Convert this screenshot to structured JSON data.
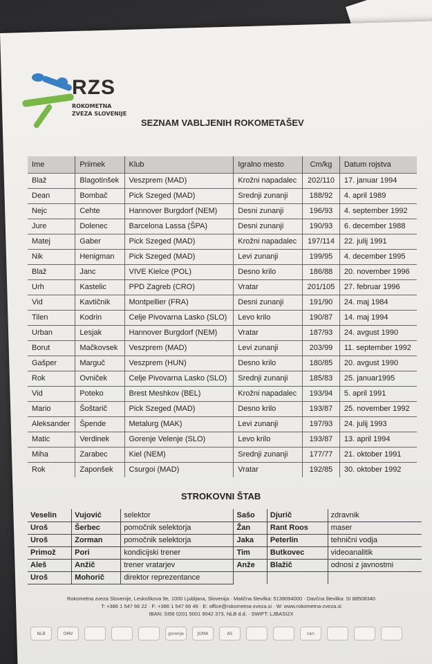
{
  "logo": {
    "text": "RZS",
    "subtitle": "ROKOMETNA\nZVEZA SLOVENIJE",
    "colors": {
      "blue": "#3a7fc4",
      "green": "#7ab648"
    }
  },
  "title": "SEZNAM VABLJENIH ROKOMETAŠEV",
  "players": {
    "columns": [
      "Ime",
      "Priimek",
      "Klub",
      "Igralno mesto",
      "Cm/kg",
      "Datum rojstva"
    ],
    "rows": [
      [
        "Blaž",
        "Blagotinšek",
        "Veszprem (MAD)",
        "Krožni napadalec",
        "202/110",
        "17. januar 1994"
      ],
      [
        "Dean",
        "Bombač",
        "Pick Szeged (MAD)",
        "Srednji zunanji",
        "188/92",
        "4. april 1989"
      ],
      [
        "Nejc",
        "Cehte",
        "Hannover Burgdorf (NEM)",
        "Desni zunanji",
        "196/93",
        "4. september 1992"
      ],
      [
        "Jure",
        "Dolenec",
        "Barcelona Lassa (ŠPA)",
        "Desni zunanji",
        "190/93",
        "6. december 1988"
      ],
      [
        "Matej",
        "Gaber",
        "Pick Szeged (MAD)",
        "Krožni napadalec",
        "197/114",
        "22. julij 1991"
      ],
      [
        "Nik",
        "Henigman",
        "Pick Szeged (MAD)",
        "Levi zunanji",
        "199/95",
        "4. december 1995"
      ],
      [
        "Blaž",
        "Janc",
        "VIVE Kielce (POL)",
        "Desno krilo",
        "186/88",
        "20. november 1996"
      ],
      [
        "Urh",
        "Kastelic",
        "PPD Zagreb (CRO)",
        "Vratar",
        "201/105",
        "27. februar 1996"
      ],
      [
        "Vid",
        "Kavtičnik",
        "Montpellier (FRA)",
        "Desni zunanji",
        "191/90",
        "24. maj 1984"
      ],
      [
        "Tilen",
        "Kodrin",
        "Celje Pivovarna Lasko (SLO)",
        "Levo krilo",
        "190/87",
        "14. maj 1994"
      ],
      [
        "Urban",
        "Lesjak",
        "Hannover Burgdorf (NEM)",
        "Vratar",
        "187/93",
        "24. avgust 1990"
      ],
      [
        "Borut",
        "Mačkovsek",
        "Veszprem (MAD)",
        "Levi zunanji",
        "203/99",
        "11. september 1992"
      ],
      [
        "Gašper",
        "Marguč",
        "Veszprem (HUN)",
        "Desno krilo",
        "180/85",
        "20. avgust 1990"
      ],
      [
        "Rok",
        "Ovniček",
        "Celje Pivovarna Lasko (SLO)",
        "Srednji zunanji",
        "185/83",
        "25. januar1995"
      ],
      [
        "Vid",
        "Poteko",
        "Brest Meshkov (BEL)",
        "Krožni napadalec",
        "193/94",
        "5. april 1991"
      ],
      [
        "Mario",
        "Šoštarič",
        "Pick Szeged (MAD)",
        "Desno krilo",
        "193/87",
        "25. november 1992"
      ],
      [
        "Aleksander",
        "Špende",
        "Metalurg (MAK)",
        "Levi zunanji",
        "197/93",
        "24. julij 1993"
      ],
      [
        "Matic",
        "Verdinek",
        "Gorenje Velenje (SLO)",
        "Levo krilo",
        "193/87",
        "13. april 1994"
      ],
      [
        "Miha",
        "Zarabec",
        "Kiel (NEM)",
        "Srednji zunanji",
        "177/77",
        "21. oktober 1991"
      ],
      [
        "Rok",
        "Zaponšek",
        "Csurgoi (MAD)",
        "Vratar",
        "192/85",
        "30. oktober 1992"
      ]
    ]
  },
  "staff_title": "STROKOVNI ŠTAB",
  "staff": [
    [
      "Veselin",
      "Vujović",
      "selektor",
      "Sašo",
      "Djurič",
      "zdravnik"
    ],
    [
      "Uroš",
      "Šerbec",
      "pomočnik selektorja",
      "Žan",
      "Rant Roos",
      "maser"
    ],
    [
      "Uroš",
      "Zorman",
      "pomočnik selektorja",
      "Jaka",
      "Peterlin",
      "tehnični vodja"
    ],
    [
      "Primož",
      "Pori",
      "kondicijski trener",
      "Tim",
      "Butkovec",
      "videoanalitik"
    ],
    [
      "Aleš",
      "Anžič",
      "trener vratarjev",
      "Anže",
      "Blažič",
      "odnosi z javnostmi"
    ],
    [
      "Uroš",
      "Mohorič",
      "direktor reprezentance",
      "",
      "",
      ""
    ]
  ],
  "footer": {
    "line1": "Rokometna zveza Slovenije, Leskoškova 9e, 1000 Ljubljana, Slovenija · Matična številka: 5138094000 · Davčna številka: SI 88508340",
    "line2": "T: +386 1 547 66 22 · F: +386 1 547 66 46 · E: office@rokometna-zveza.si · W: www.rokometna-zveza.si",
    "line3": "IBAN: SI56 0201 5001 9042 373, NLB d.d. · SWIFT: LJBASI2X"
  },
  "sponsors": [
    "NLB",
    "OMV",
    "",
    "",
    "",
    "gorenje",
    "JOMA",
    "AS",
    "",
    "",
    "cen",
    "",
    "",
    ""
  ]
}
